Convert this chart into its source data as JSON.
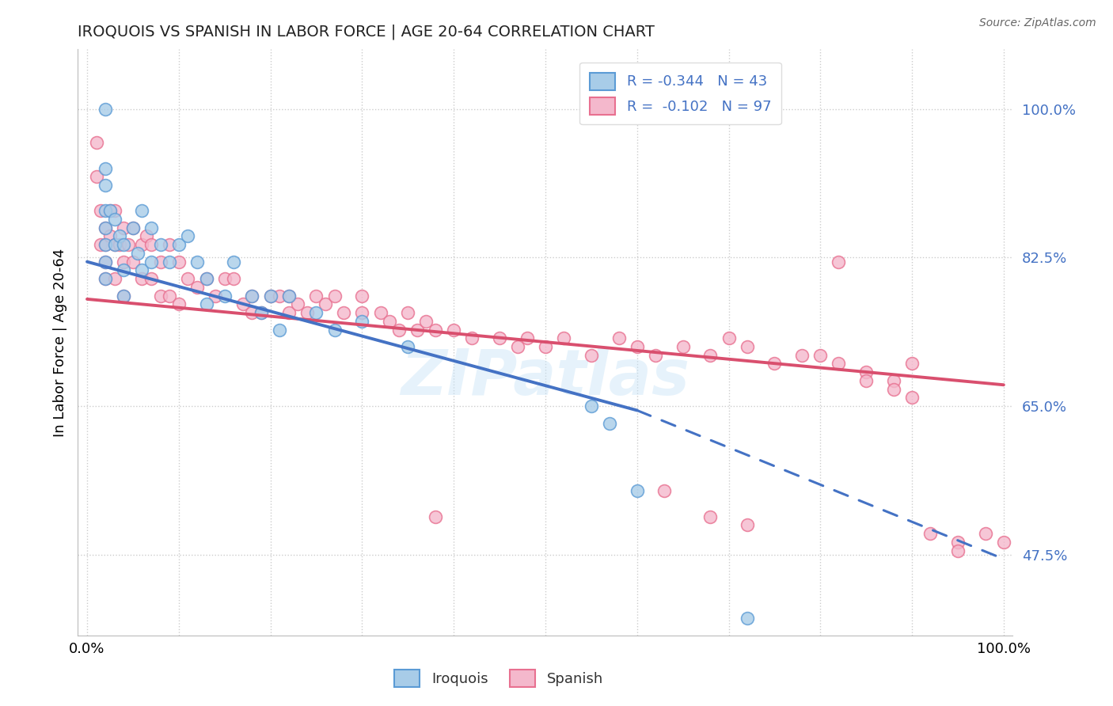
{
  "title": "IROQUOIS VS SPANISH IN LABOR FORCE | AGE 20-64 CORRELATION CHART",
  "source": "Source: ZipAtlas.com",
  "ylabel": "In Labor Force | Age 20-64",
  "xlim": [
    -0.01,
    1.01
  ],
  "ylim": [
    0.38,
    1.07
  ],
  "yticks": [
    0.475,
    0.65,
    0.825,
    1.0
  ],
  "ytick_labels": [
    "47.5%",
    "65.0%",
    "82.5%",
    "100.0%"
  ],
  "legend_label_iroquois": "Iroquois",
  "legend_label_spanish": "Spanish",
  "iroquois_color": "#a8cce8",
  "spanish_color": "#f4b8cc",
  "iroquois_edge_color": "#5b9bd5",
  "spanish_edge_color": "#e87090",
  "iroquois_line_color": "#4472c4",
  "spanish_line_color": "#d94f6e",
  "R_iroquois": -0.344,
  "N_iroquois": 43,
  "R_spanish": -0.102,
  "N_spanish": 97,
  "iroquois_x": [
    0.02,
    0.02,
    0.02,
    0.02,
    0.02,
    0.02,
    0.02,
    0.02,
    0.025,
    0.03,
    0.03,
    0.035,
    0.04,
    0.04,
    0.04,
    0.05,
    0.055,
    0.06,
    0.06,
    0.07,
    0.07,
    0.08,
    0.09,
    0.1,
    0.11,
    0.12,
    0.13,
    0.13,
    0.15,
    0.16,
    0.18,
    0.19,
    0.2,
    0.21,
    0.22,
    0.25,
    0.27,
    0.3,
    0.35,
    0.55,
    0.57,
    0.6,
    0.72
  ],
  "iroquois_y": [
    1.0,
    0.93,
    0.91,
    0.88,
    0.86,
    0.84,
    0.82,
    0.8,
    0.88,
    0.87,
    0.84,
    0.85,
    0.84,
    0.81,
    0.78,
    0.86,
    0.83,
    0.88,
    0.81,
    0.86,
    0.82,
    0.84,
    0.82,
    0.84,
    0.85,
    0.82,
    0.8,
    0.77,
    0.78,
    0.82,
    0.78,
    0.76,
    0.78,
    0.74,
    0.78,
    0.76,
    0.74,
    0.75,
    0.72,
    0.65,
    0.63,
    0.55,
    0.4
  ],
  "spanish_x": [
    0.01,
    0.01,
    0.015,
    0.015,
    0.02,
    0.02,
    0.02,
    0.02,
    0.025,
    0.025,
    0.03,
    0.03,
    0.03,
    0.035,
    0.04,
    0.04,
    0.04,
    0.045,
    0.05,
    0.05,
    0.06,
    0.06,
    0.065,
    0.07,
    0.07,
    0.08,
    0.08,
    0.09,
    0.09,
    0.1,
    0.1,
    0.11,
    0.12,
    0.13,
    0.14,
    0.15,
    0.16,
    0.17,
    0.18,
    0.18,
    0.19,
    0.2,
    0.21,
    0.22,
    0.22,
    0.23,
    0.24,
    0.25,
    0.26,
    0.27,
    0.28,
    0.3,
    0.3,
    0.32,
    0.33,
    0.34,
    0.35,
    0.36,
    0.37,
    0.38,
    0.4,
    0.42,
    0.45,
    0.47,
    0.48,
    0.5,
    0.52,
    0.55,
    0.58,
    0.6,
    0.62,
    0.65,
    0.68,
    0.7,
    0.72,
    0.75,
    0.78,
    0.8,
    0.82,
    0.85,
    0.88,
    0.9,
    0.82,
    0.85,
    0.88,
    0.9,
    0.92,
    0.95,
    0.95,
    0.98,
    1.0,
    0.63,
    0.68,
    0.72,
    0.38
  ],
  "spanish_y": [
    0.96,
    0.92,
    0.88,
    0.84,
    0.86,
    0.84,
    0.82,
    0.8,
    0.88,
    0.85,
    0.88,
    0.84,
    0.8,
    0.84,
    0.86,
    0.82,
    0.78,
    0.84,
    0.86,
    0.82,
    0.84,
    0.8,
    0.85,
    0.84,
    0.8,
    0.82,
    0.78,
    0.84,
    0.78,
    0.82,
    0.77,
    0.8,
    0.79,
    0.8,
    0.78,
    0.8,
    0.8,
    0.77,
    0.78,
    0.76,
    0.76,
    0.78,
    0.78,
    0.78,
    0.76,
    0.77,
    0.76,
    0.78,
    0.77,
    0.78,
    0.76,
    0.78,
    0.76,
    0.76,
    0.75,
    0.74,
    0.76,
    0.74,
    0.75,
    0.74,
    0.74,
    0.73,
    0.73,
    0.72,
    0.73,
    0.72,
    0.73,
    0.71,
    0.73,
    0.72,
    0.71,
    0.72,
    0.71,
    0.73,
    0.72,
    0.7,
    0.71,
    0.71,
    0.7,
    0.69,
    0.68,
    0.7,
    0.82,
    0.68,
    0.67,
    0.66,
    0.5,
    0.49,
    0.48,
    0.5,
    0.49,
    0.55,
    0.52,
    0.51,
    0.52
  ]
}
